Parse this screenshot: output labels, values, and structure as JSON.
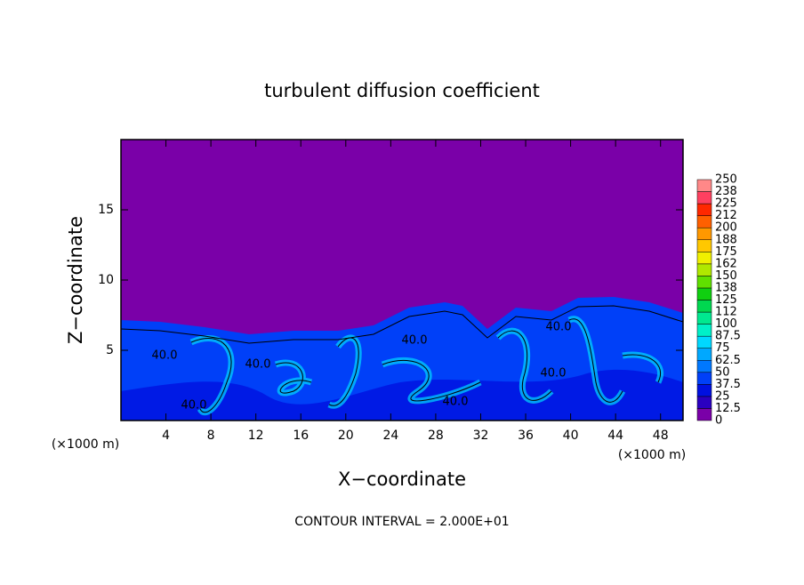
{
  "chart_data": {
    "type": "contour",
    "title": "turbulent diffusion coefficient",
    "xlabel": "X−coordinate",
    "ylabel": "Z−coordinate",
    "x_unit": "(×1000 m)",
    "footer": "CONTOUR INTERVAL = 2.000E+01",
    "xlim": [
      0,
      50
    ],
    "ylim": [
      0,
      20
    ],
    "xticks": [
      4,
      8,
      12,
      16,
      20,
      24,
      28,
      32,
      36,
      40,
      44,
      48
    ],
    "yticks": [
      5,
      10,
      15
    ],
    "levels": [
      0,
      12.5,
      25,
      37.5,
      50,
      62.5,
      75,
      87.5,
      100,
      112,
      125,
      138,
      150,
      162,
      175,
      188,
      200,
      212,
      225,
      238,
      250
    ],
    "colors": [
      "#7a00a8",
      "#2a00c0",
      "#0010e0",
      "#0040f8",
      "#0078ff",
      "#00a8ff",
      "#00d8ff",
      "#00f0c8",
      "#00e890",
      "#00d850",
      "#10d010",
      "#60e000",
      "#b0e800",
      "#f0f000",
      "#ffc800",
      "#ff9800",
      "#ff6000",
      "#ff2800",
      "#ff4060",
      "#ff8888"
    ],
    "annotations": [
      "40.0",
      "40.0",
      "40.0",
      "40.0",
      "40.0",
      "40.0",
      "40.0"
    ]
  }
}
